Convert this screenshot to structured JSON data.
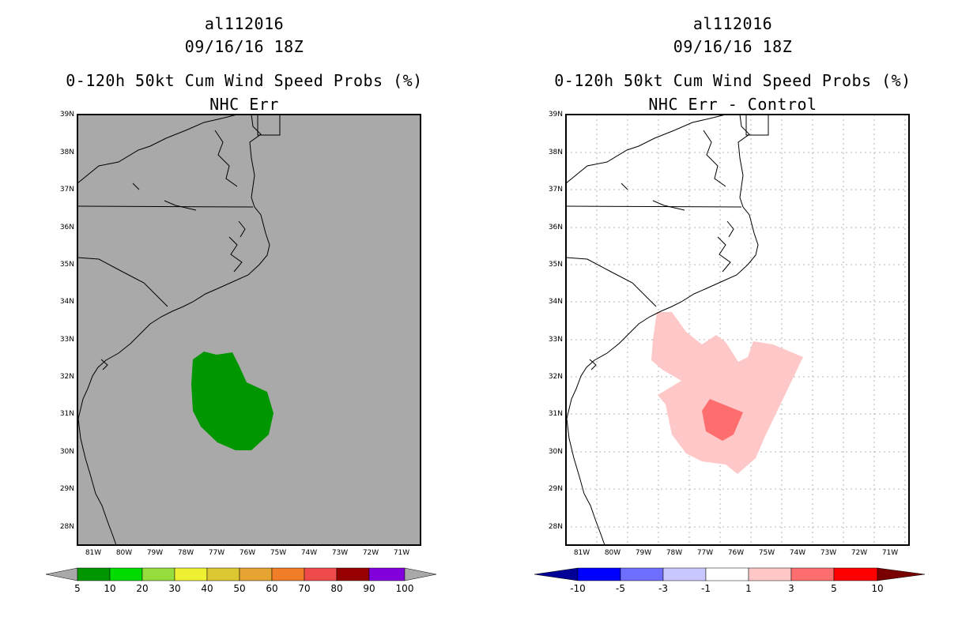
{
  "left": {
    "title_line1": "al112016",
    "title_line2": "09/16/16 18Z",
    "title_line3": "0-120h 50kt Cum Wind Speed Probs (%)",
    "title_line4": "NHC Err",
    "colorbar": {
      "colors": [
        "#009600",
        "#00dc00",
        "#96dc3c",
        "#f0f032",
        "#dcc832",
        "#e6a532",
        "#f07d28",
        "#f04b4b",
        "#960000",
        "#8200dc"
      ],
      "labels": [
        "5",
        "10",
        "20",
        "30",
        "40",
        "50",
        "60",
        "70",
        "80",
        "90",
        "100"
      ]
    }
  },
  "right": {
    "title_line1": "al112016",
    "title_line2": "09/16/16 18Z",
    "title_line3": "0-120h 50kt Cum Wind Speed Probs (%)",
    "title_line4": "NHC Err - Control",
    "colorbar": {
      "colors": [
        "#0000ff",
        "#6e6eff",
        "#c8c8ff",
        "#ffffff",
        "#ffc8c8",
        "#ff6e6e",
        "#ff0000"
      ],
      "labels": [
        "-10",
        "-5",
        "-3",
        "-1",
        "1",
        "3",
        "5",
        "10"
      ]
    }
  },
  "axes": {
    "lat_labels": [
      "39N",
      "38N",
      "37N",
      "36N",
      "35N",
      "34N",
      "33N",
      "32N",
      "31N",
      "30N",
      "29N",
      "28N"
    ],
    "lon_labels": [
      "81W",
      "80W",
      "79W",
      "78W",
      "77W",
      "76W",
      "75W",
      "74W",
      "73W",
      "72W",
      "71W"
    ]
  },
  "colors": {
    "left_background": "#a9a9a9",
    "left_prob_5_10": "#009600",
    "right_diff_1_3": "#ffc8c8",
    "right_diff_3_5": "#ff6e6e"
  }
}
